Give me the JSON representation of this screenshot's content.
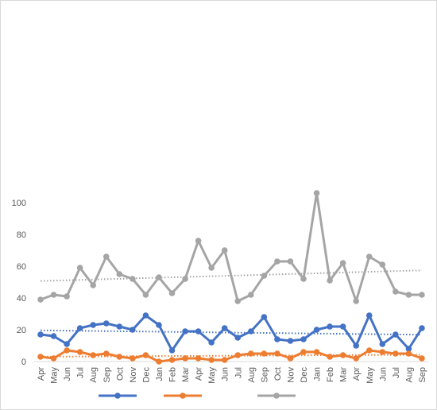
{
  "chart_data": {
    "type": "line",
    "categories": [
      "Apr",
      "May",
      "Jun",
      "Jul",
      "Aug",
      "Sep",
      "Oct",
      "Nov",
      "Dec",
      "Jan",
      "Feb",
      "Mar",
      "Apr",
      "May",
      "Jun",
      "Jul",
      "Aug",
      "Sep",
      "Oct",
      "Nov",
      "Dec",
      "Jan",
      "Feb",
      "Mar",
      "Apr",
      "May",
      "Jun",
      "Jul",
      "Aug",
      "Sep"
    ],
    "ylim": [
      0,
      110
    ],
    "yticks": [
      0,
      20,
      40,
      60,
      80,
      100
    ],
    "grid": false,
    "legend": "bottom",
    "trendlines": true,
    "series": [
      {
        "color": "#4472c4",
        "values": [
          17,
          16,
          11,
          21,
          23,
          24,
          22,
          20,
          29,
          23,
          7,
          19,
          19,
          12,
          21,
          15,
          19,
          28,
          14,
          13,
          14,
          20,
          22,
          22,
          10,
          29,
          11,
          17,
          8,
          21
        ]
      },
      {
        "color": "#ed7d31",
        "values": [
          3,
          2,
          7,
          6,
          4,
          5,
          3,
          2,
          4,
          0,
          1,
          2,
          2,
          1,
          1,
          4,
          5,
          5,
          5,
          2,
          6,
          6,
          3,
          4,
          2,
          7,
          6,
          5,
          5,
          2
        ]
      },
      {
        "color": "#a5a5a5",
        "values": [
          39,
          42,
          41,
          59,
          48,
          66,
          55,
          52,
          42,
          53,
          43,
          52,
          76,
          59,
          70,
          38,
          42,
          54,
          63,
          63,
          52,
          106,
          51,
          62,
          38,
          66,
          61,
          44,
          42,
          42
        ]
      }
    ]
  }
}
